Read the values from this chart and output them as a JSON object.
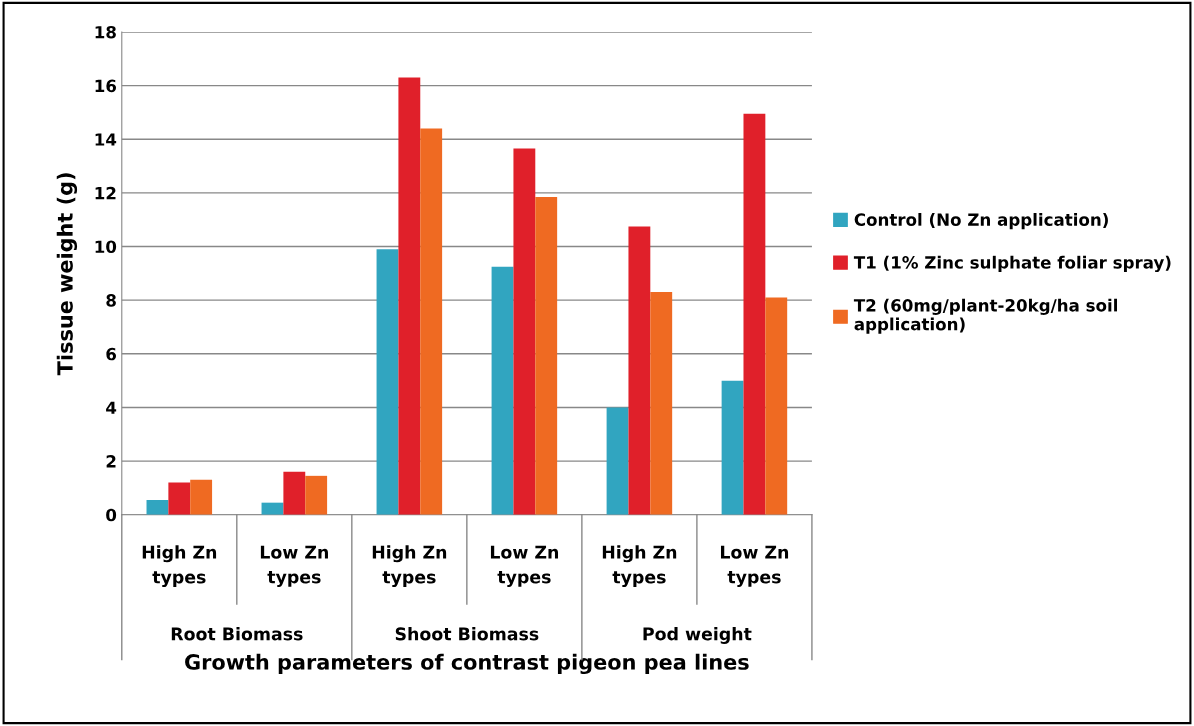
{
  "chart_data": {
    "type": "bar",
    "xlabel": "Growth parameters of contrast pigeon pea lines",
    "ylabel": "Tissue weight (g)",
    "categories": [
      "High Zn\ntypes",
      "Low Zn\ntypes",
      "High Zn\ntypes",
      "Low Zn\ntypes",
      "High Zn\ntypes",
      "Low Zn\ntypes"
    ],
    "series": [
      {
        "name": "Control (No Zn application)",
        "color": "#31a5c0",
        "values": [
          0.55,
          0.45,
          9.9,
          9.25,
          4.0,
          5.0
        ]
      },
      {
        "name": "T1 (1% Zinc sulphate foliar spray)",
        "color": "#e0202a",
        "values": [
          1.2,
          1.6,
          16.3,
          13.65,
          10.75,
          14.95
        ]
      },
      {
        "name": "T2 (60mg/plant-20kg/ha soil\napplication)",
        "color": "#ef6a22",
        "values": [
          1.3,
          1.45,
          14.4,
          11.85,
          8.3,
          8.1
        ]
      }
    ],
    "annotations": [
      "Root Biomass",
      "Shoot Biomass",
      "Pod weight"
    ],
    "ylim": [
      0,
      18
    ],
    "yticks": [
      0,
      2,
      4,
      6,
      8,
      10,
      12,
      14,
      16,
      18
    ],
    "grid": "y",
    "legend": "right"
  }
}
